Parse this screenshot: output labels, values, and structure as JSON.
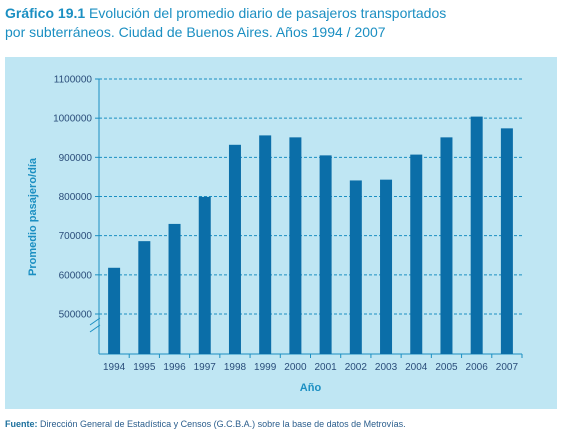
{
  "header": {
    "number": "Gráfico 19.1",
    "title_line1": "Evolución del promedio diario de pasajeros transportados",
    "title_line2": "por subterráneos. Ciudad de Buenos Aires. Años 1994 / 2007"
  },
  "source": {
    "label": "Fuente:",
    "text": "Dirección General de Estadística y Censos (G.C.B.A.) sobre la base de datos de Metrovías."
  },
  "colors": {
    "bar": "#0b6ea8",
    "axis": "#1b8fc2",
    "grid": "#1b8fc2",
    "panel_bg": "#bfe6f3",
    "title": "#1b8fc2"
  },
  "chart_data": {
    "type": "bar",
    "title": "Evolución del promedio diario de pasajeros transportados por subterráneos. Ciudad de Buenos Aires. Años 1994 / 2007",
    "xlabel": "Año",
    "ylabel": "Promedio pasajero/día",
    "categories": [
      "1994",
      "1995",
      "1996",
      "1997",
      "1998",
      "1999",
      "2000",
      "2001",
      "2002",
      "2003",
      "2004",
      "2005",
      "2006",
      "2007"
    ],
    "values": [
      618000,
      686000,
      730000,
      799000,
      932000,
      956000,
      951000,
      905000,
      841000,
      843000,
      907000,
      951000,
      1004000,
      974000
    ],
    "yticks": [
      "500000",
      "600000",
      "700000",
      "800000",
      "900000",
      "1000000",
      "1100000"
    ],
    "ylim": [
      500000,
      1100000
    ],
    "axis_break": true,
    "grid": "horizontal"
  }
}
